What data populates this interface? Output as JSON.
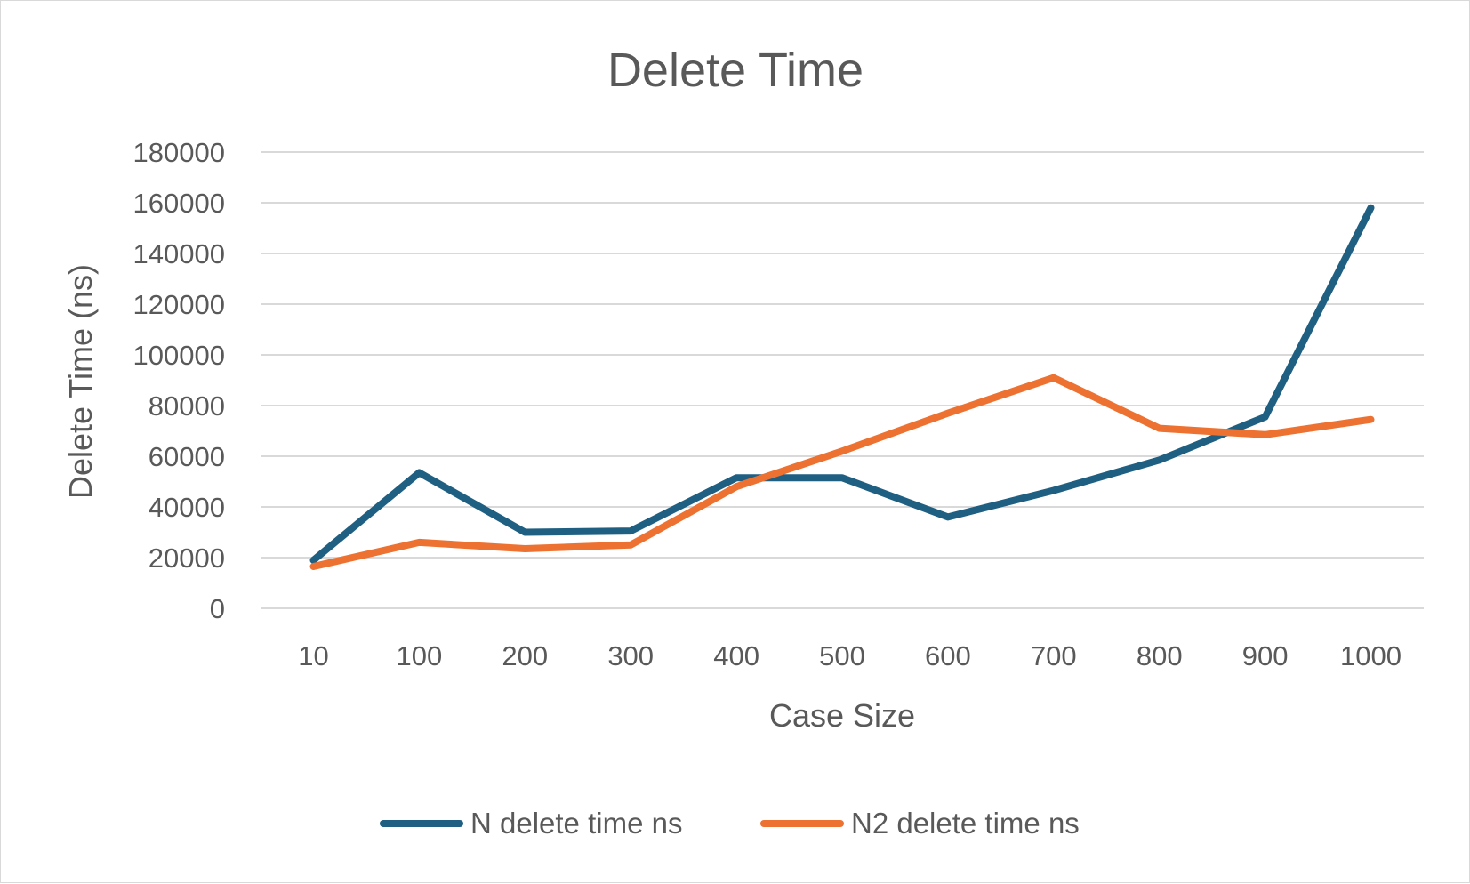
{
  "chart_data": {
    "type": "line",
    "title": "Delete Time",
    "xlabel": "Case Size",
    "ylabel": "Delete Time (ns)",
    "categories": [
      "10",
      "100",
      "200",
      "300",
      "400",
      "500",
      "600",
      "700",
      "800",
      "900",
      "1000"
    ],
    "ylim": [
      0,
      180000
    ],
    "yticks": [
      "0",
      "20000",
      "40000",
      "60000",
      "80000",
      "100000",
      "120000",
      "140000",
      "160000",
      "180000"
    ],
    "grid": true,
    "legend_position": "bottom",
    "series": [
      {
        "name": "N delete time ns",
        "color": "#1f5f82",
        "values": [
          19000,
          53500,
          30000,
          30500,
          51500,
          51500,
          36000,
          46500,
          58500,
          75500,
          158000
        ]
      },
      {
        "name": "N2 delete time ns",
        "color": "#ed7131",
        "values": [
          16500,
          26000,
          23500,
          25000,
          48000,
          62000,
          77000,
          91000,
          71000,
          68500,
          74500
        ]
      }
    ]
  }
}
